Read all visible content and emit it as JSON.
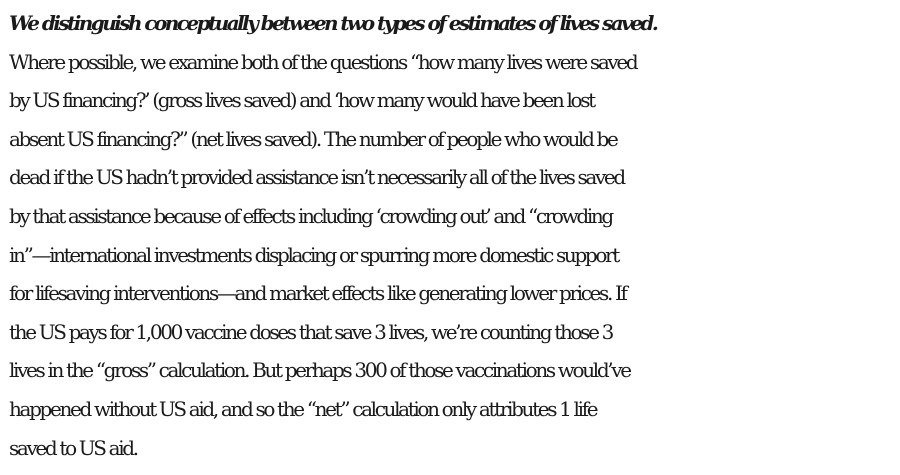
{
  "article": {
    "lead_sentence": "We distinguish conceptually between two types of estimates of lives saved.",
    "body_lines": [
      "Where possible, we examine both of the questions “how many lives were saved",
      "by US financing?’ (gross lives saved) and ‘how many would have been lost",
      "absent US financing?” (net lives saved). The number of people who would be",
      "dead if the US hadn’t provided assistance isn’t necessarily all of the lives saved",
      "by that assistance because of effects including ‘crowding out’ and “crowding",
      "in”—international investments displacing or spurring more domestic support",
      "for lifesaving interventions—and market effects like generating lower prices. If",
      "the US pays for 1,000 vaccine doses that save 3 lives, we’re counting those 3",
      "lives in the “gross” calculation. But perhaps 300 of those vaccinations would’ve",
      "happened without US aid, and so the “net” calculation only attributes 1 life",
      "saved to US aid."
    ]
  }
}
